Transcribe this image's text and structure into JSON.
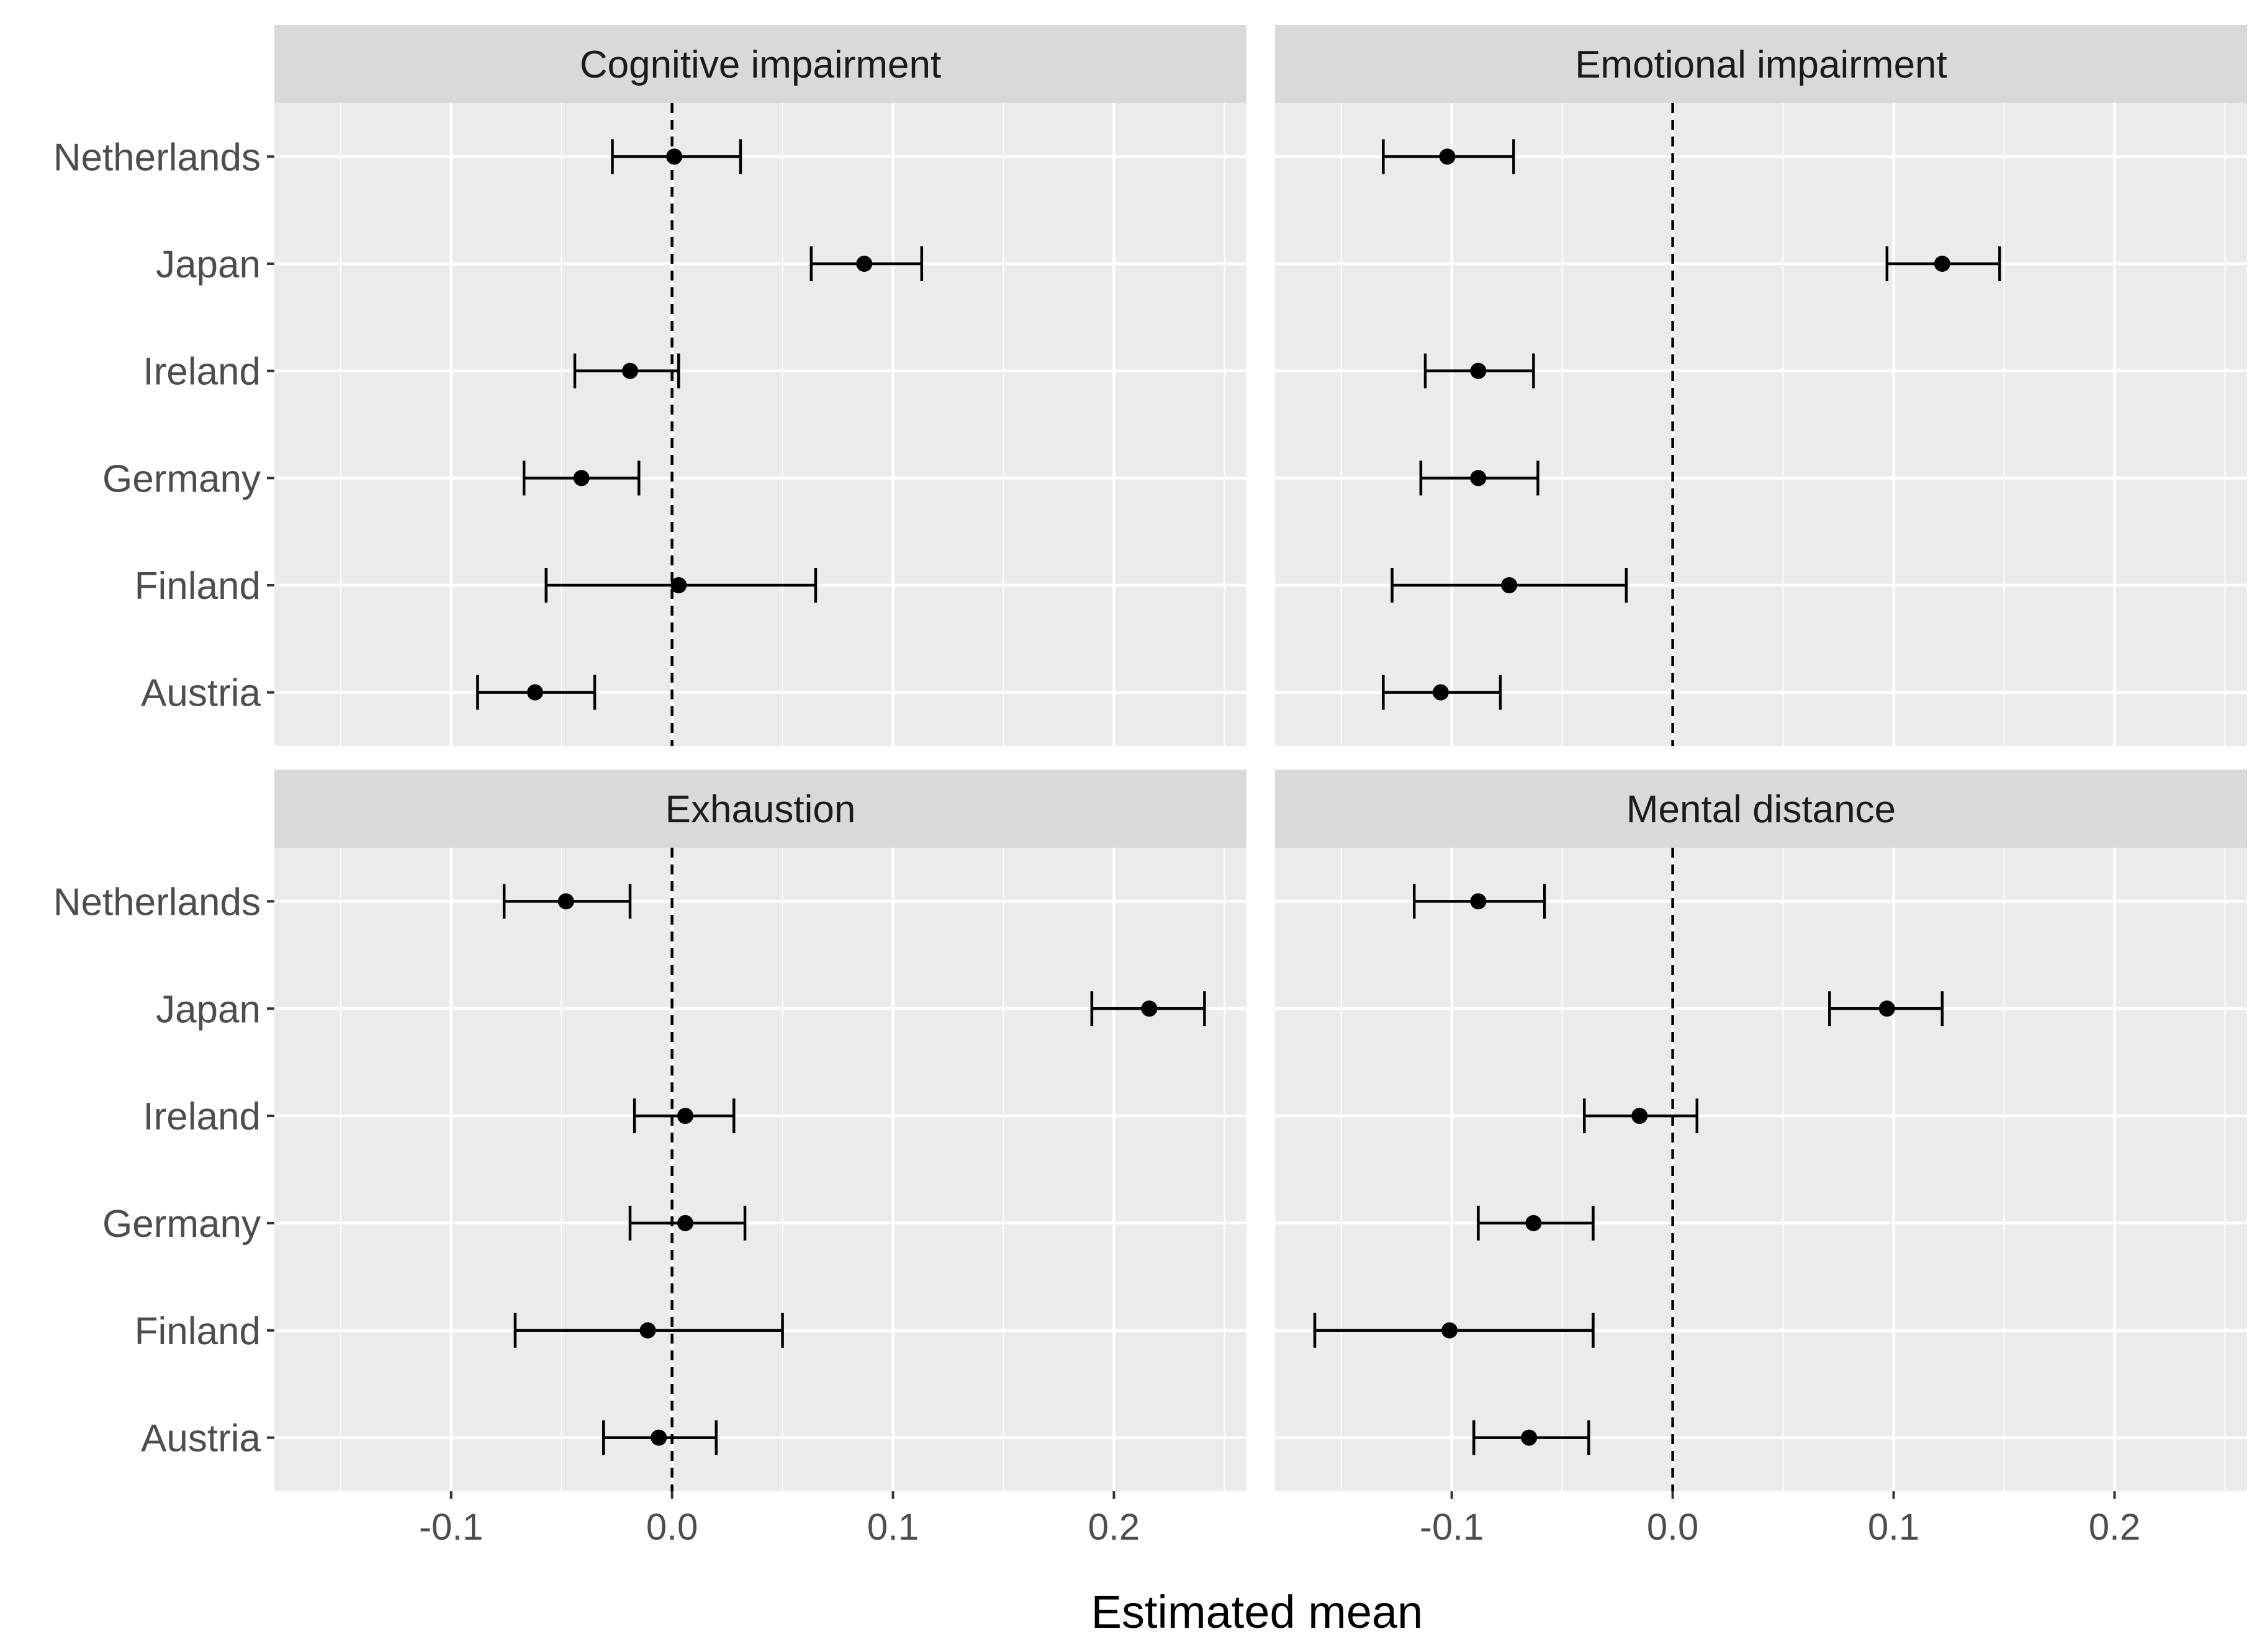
{
  "chart_data": {
    "type": "scatter",
    "subtype": "dot-and-whisker, faceted 2x2",
    "xlabel": "Estimated mean",
    "ylabel": "",
    "xlim": [
      -0.18,
      0.26
    ],
    "xticks": [
      -0.1,
      0.0,
      0.1,
      0.2
    ],
    "xtick_labels": [
      "-0.1",
      "0.0",
      "0.1",
      "0.2"
    ],
    "reference_line": {
      "x": 0,
      "style": "dashed"
    },
    "categories": [
      "Netherlands",
      "Japan",
      "Ireland",
      "Germany",
      "Finland",
      "Austria"
    ],
    "grid": true,
    "colors": {
      "panel_bg": "#EBEBEB",
      "strip_bg": "#D9D9D9",
      "grid_line": "#FFFFFF",
      "point": "#000000",
      "axis_text": "#4D4D4D",
      "strip_text": "#1A1A1A",
      "title_text": "#000000"
    },
    "facets": [
      {
        "title": "Cognitive impairment",
        "points": [
          {
            "country": "Netherlands",
            "mean": 0.001,
            "lower": -0.027,
            "upper": 0.031
          },
          {
            "country": "Japan",
            "mean": 0.087,
            "lower": 0.063,
            "upper": 0.113
          },
          {
            "country": "Ireland",
            "mean": -0.019,
            "lower": -0.044,
            "upper": 0.003
          },
          {
            "country": "Germany",
            "mean": -0.041,
            "lower": -0.067,
            "upper": -0.015
          },
          {
            "country": "Finland",
            "mean": 0.003,
            "lower": -0.057,
            "upper": 0.065
          },
          {
            "country": "Austria",
            "mean": -0.062,
            "lower": -0.088,
            "upper": -0.035
          }
        ]
      },
      {
        "title": "Emotional impairment",
        "points": [
          {
            "country": "Netherlands",
            "mean": -0.102,
            "lower": -0.131,
            "upper": -0.072
          },
          {
            "country": "Japan",
            "mean": 0.122,
            "lower": 0.097,
            "upper": 0.148
          },
          {
            "country": "Ireland",
            "mean": -0.088,
            "lower": -0.112,
            "upper": -0.063
          },
          {
            "country": "Germany",
            "mean": -0.088,
            "lower": -0.114,
            "upper": -0.061
          },
          {
            "country": "Finland",
            "mean": -0.074,
            "lower": -0.127,
            "upper": -0.021
          },
          {
            "country": "Austria",
            "mean": -0.105,
            "lower": -0.131,
            "upper": -0.078
          }
        ]
      },
      {
        "title": "Exhaustion",
        "points": [
          {
            "country": "Netherlands",
            "mean": -0.048,
            "lower": -0.076,
            "upper": -0.019
          },
          {
            "country": "Japan",
            "mean": 0.216,
            "lower": 0.19,
            "upper": 0.241
          },
          {
            "country": "Ireland",
            "mean": 0.006,
            "lower": -0.017,
            "upper": 0.028
          },
          {
            "country": "Germany",
            "mean": 0.006,
            "lower": -0.019,
            "upper": 0.033
          },
          {
            "country": "Finland",
            "mean": -0.011,
            "lower": -0.071,
            "upper": 0.05
          },
          {
            "country": "Austria",
            "mean": -0.006,
            "lower": -0.031,
            "upper": 0.02
          }
        ]
      },
      {
        "title": "Mental distance",
        "points": [
          {
            "country": "Netherlands",
            "mean": -0.088,
            "lower": -0.117,
            "upper": -0.058
          },
          {
            "country": "Japan",
            "mean": 0.097,
            "lower": 0.071,
            "upper": 0.122
          },
          {
            "country": "Ireland",
            "mean": -0.015,
            "lower": -0.04,
            "upper": 0.011
          },
          {
            "country": "Germany",
            "mean": -0.063,
            "lower": -0.088,
            "upper": -0.036
          },
          {
            "country": "Finland",
            "mean": -0.101,
            "lower": -0.162,
            "upper": -0.036
          },
          {
            "country": "Austria",
            "mean": -0.065,
            "lower": -0.09,
            "upper": -0.038
          }
        ]
      }
    ]
  }
}
